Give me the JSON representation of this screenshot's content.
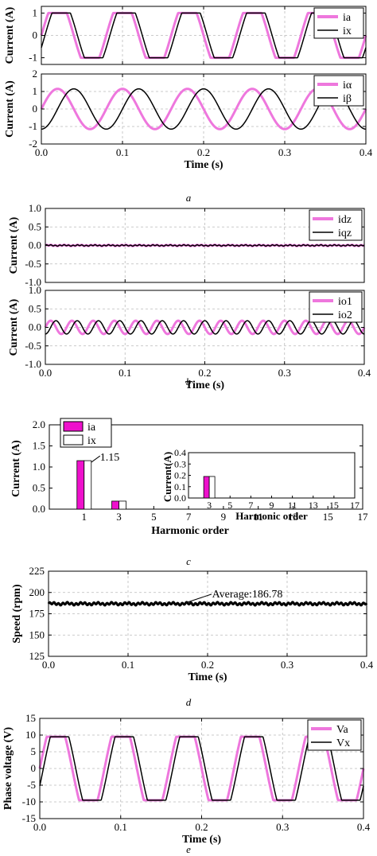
{
  "figure": {
    "captions": [
      "a",
      "b",
      "c",
      "d",
      "e"
    ]
  },
  "chart_data": [
    {
      "id": "a1",
      "type": "line",
      "xlabel": "",
      "ylabel": "Current (A)",
      "xlim": [
        0.0,
        0.4
      ],
      "ylim": [
        -1.3,
        1.3
      ],
      "yticks": [
        -1,
        0,
        1
      ],
      "xticks": [
        0.0,
        0.1,
        0.2,
        0.3,
        0.4
      ],
      "show_xticklabels": false,
      "grid": true,
      "legend": "top-right",
      "series": [
        {
          "name": "ia",
          "color": "#ee77dd",
          "shape": "trapezoid",
          "amplitude": 1.0,
          "frequency_hz": 12.5,
          "phase_deg": 0
        },
        {
          "name": "ix",
          "color": "#000000",
          "shape": "trapezoid",
          "amplitude": 1.0,
          "frequency_hz": 12.5,
          "phase_deg": -20
        }
      ]
    },
    {
      "id": "a2",
      "type": "line",
      "xlabel": "Time (s)",
      "ylabel": "Current (A)",
      "xlim": [
        0.0,
        0.4
      ],
      "ylim": [
        -2,
        2
      ],
      "yticks": [
        -2,
        -1,
        0,
        1,
        2
      ],
      "xticks": [
        0.0,
        0.1,
        0.2,
        0.3,
        0.4
      ],
      "show_xticklabels": true,
      "grid": true,
      "legend": "top-right",
      "series": [
        {
          "name": "iα",
          "color": "#ee77dd",
          "shape": "sine",
          "amplitude": 1.15,
          "frequency_hz": 12.5,
          "phase_deg": 0
        },
        {
          "name": "iβ",
          "color": "#000000",
          "shape": "sine",
          "amplitude": 1.15,
          "frequency_hz": 12.5,
          "phase_deg": -90
        }
      ]
    },
    {
      "id": "b1",
      "type": "line",
      "xlabel": "",
      "ylabel": "Current (A)",
      "xlim": [
        0.0,
        0.4
      ],
      "ylim": [
        -1.0,
        1.0
      ],
      "yticks": [
        -1.0,
        -0.5,
        0.0,
        0.5,
        1.0
      ],
      "xticks": [
        0.0,
        0.1,
        0.2,
        0.3,
        0.4
      ],
      "show_xticklabels": false,
      "grid": true,
      "legend": "top-right",
      "series": [
        {
          "name": "idz",
          "color": "#ee77dd",
          "shape": "flat",
          "amplitude": 0.0,
          "frequency_hz": 0,
          "phase_deg": 0
        },
        {
          "name": "iqz",
          "color": "#000000",
          "shape": "flat",
          "amplitude": 0.0,
          "frequency_hz": 0,
          "phase_deg": 0
        }
      ]
    },
    {
      "id": "b2",
      "type": "line",
      "xlabel": "Time (s)",
      "ylabel": "Current (A)",
      "xlim": [
        0.0,
        0.4
      ],
      "ylim": [
        -1.0,
        1.0
      ],
      "yticks": [
        -1.0,
        -0.5,
        0.0,
        0.5,
        1.0
      ],
      "xticks": [
        0.0,
        0.1,
        0.2,
        0.3,
        0.4
      ],
      "show_xticklabels": true,
      "grid": true,
      "legend": "top-right",
      "series": [
        {
          "name": "io1",
          "color": "#ee77dd",
          "shape": "sine",
          "amplitude": 0.18,
          "frequency_hz": 37.5,
          "phase_deg": 0
        },
        {
          "name": "io2",
          "color": "#000000",
          "shape": "sine",
          "amplitude": 0.18,
          "frequency_hz": 37.5,
          "phase_deg": -90
        }
      ]
    },
    {
      "id": "c1",
      "type": "bar",
      "xlabel": "Harmonic order",
      "ylabel": "Current (A)",
      "categories": [
        1,
        3,
        5,
        7,
        9,
        11,
        13,
        15,
        17
      ],
      "xlim": [
        -1,
        17
      ],
      "ylim": [
        0.0,
        2.0
      ],
      "yticks": [
        0.0,
        0.5,
        1.0,
        1.5,
        2.0
      ],
      "legend": "top-left",
      "annotation": {
        "text": "1.15",
        "at_category": 1,
        "value": 1.15
      },
      "series": [
        {
          "name": "ia",
          "color": "#ee11cc",
          "values": [
            1.15,
            0.19,
            0,
            0,
            0,
            0,
            0,
            0,
            0
          ]
        },
        {
          "name": "ix",
          "color": "#ffffff",
          "values": [
            1.15,
            0.19,
            0,
            0,
            0,
            0,
            0,
            0,
            0
          ]
        }
      ],
      "inset": {
        "xlabel": "Harmonic order",
        "ylabel": "Current(A)",
        "categories": [
          3,
          5,
          7,
          9,
          11,
          13,
          15,
          17
        ],
        "xlim": [
          1,
          17
        ],
        "ylim": [
          0.0,
          0.4
        ],
        "yticks": [
          0.0,
          0.1,
          0.2,
          0.3,
          0.4
        ],
        "series": [
          {
            "name": "ia",
            "color": "#ee11cc",
            "values": [
              0.19,
              0,
              0,
              0,
              0,
              0,
              0,
              0
            ]
          },
          {
            "name": "ix",
            "color": "#ffffff",
            "values": [
              0.19,
              0,
              0,
              0,
              0,
              0,
              0,
              0
            ]
          }
        ]
      }
    },
    {
      "id": "d1",
      "type": "line",
      "xlabel": "Time (s)",
      "ylabel": "Speed (rpm)",
      "xlim": [
        0.0,
        0.4
      ],
      "ylim": [
        125,
        225
      ],
      "yticks": [
        125,
        150,
        175,
        200,
        225
      ],
      "xticks": [
        0.0,
        0.1,
        0.2,
        0.3,
        0.4
      ],
      "show_xticklabels": true,
      "grid": true,
      "annotation": {
        "text": "Average:186.78",
        "x": 0.12,
        "y": 186.78
      },
      "series": [
        {
          "name": "",
          "color": "#000000",
          "shape": "flat",
          "amplitude": 186.78,
          "frequency_hz": 0,
          "phase_deg": 0
        }
      ]
    },
    {
      "id": "e1",
      "type": "line",
      "xlabel": "Time (s)",
      "ylabel": "Phase voltage (V)",
      "xlim": [
        0.0,
        0.4
      ],
      "ylim": [
        -15,
        15
      ],
      "yticks": [
        -15,
        -10,
        -5,
        0,
        5,
        10,
        15
      ],
      "xticks": [
        0.0,
        0.1,
        0.2,
        0.3,
        0.4
      ],
      "show_xticklabels": true,
      "grid": true,
      "legend": "top-right",
      "series": [
        {
          "name": "Va",
          "color": "#ee77dd",
          "shape": "trapezoid",
          "amplitude": 9.5,
          "frequency_hz": 12.5,
          "phase_deg": 0
        },
        {
          "name": "Vx",
          "color": "#000000",
          "shape": "trapezoid",
          "amplitude": 9.5,
          "frequency_hz": 12.5,
          "phase_deg": -20
        }
      ]
    }
  ]
}
